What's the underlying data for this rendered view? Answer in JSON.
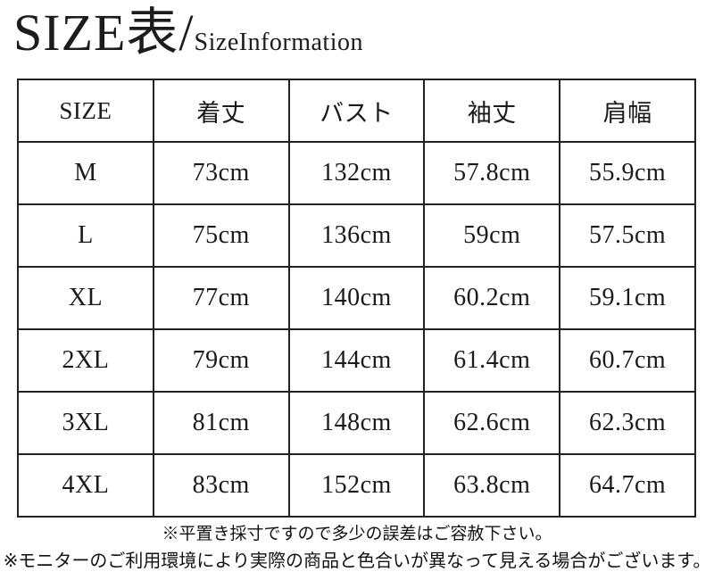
{
  "title": {
    "main": "SIZE表/",
    "sub": "SizeInformation"
  },
  "chart_data": {
    "type": "table",
    "title": "SIZE表/SizeInformation",
    "columns": [
      "SIZE",
      "着丈",
      "バスト",
      "袖丈",
      "肩幅"
    ],
    "rows": [
      [
        "M",
        "73cm",
        "132cm",
        "57.8cm",
        "55.9cm"
      ],
      [
        "L",
        "75cm",
        "136cm",
        "59cm",
        "57.5cm"
      ],
      [
        "XL",
        "77cm",
        "140cm",
        "60.2cm",
        "59.1cm"
      ],
      [
        "2XL",
        "79cm",
        "144cm",
        "61.4cm",
        "60.7cm"
      ],
      [
        "3XL",
        "81cm",
        "148cm",
        "62.6cm",
        "62.3cm"
      ],
      [
        "4XL",
        "83cm",
        "152cm",
        "63.8cm",
        "64.7cm"
      ]
    ],
    "units": "cm",
    "grid": true
  },
  "notes": {
    "line1": "※平置き採寸ですので多少の誤差はご容赦下さい。",
    "line2": "※モニターのご利用環境により実際の商品と色合いが異なって見える場合がございます。"
  },
  "colors": {
    "text": "#1a1a1a",
    "border": "#222222",
    "background": "#ffffff"
  }
}
